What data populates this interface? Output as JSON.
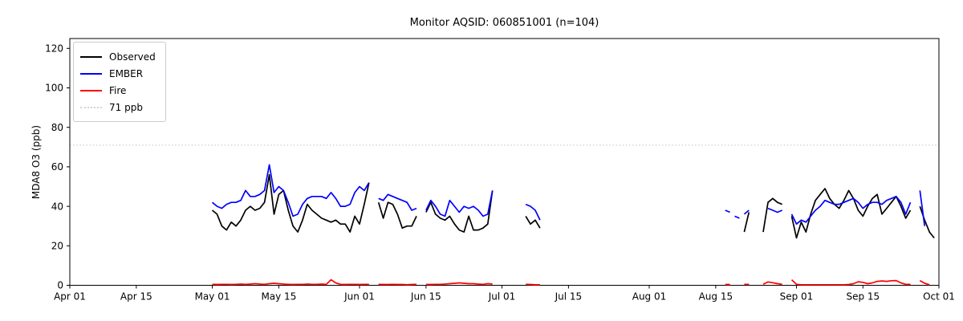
{
  "chart_data": {
    "type": "line",
    "title": "Monitor AQSID: 060851001 (n=104)",
    "xlabel": "",
    "ylabel": "MDA8 O3 (ppb)",
    "ylim": [
      0,
      125
    ],
    "y_ticks": [
      0,
      20,
      40,
      60,
      80,
      100,
      120
    ],
    "x_ticks": [
      "Apr 01",
      "Apr 15",
      "May 01",
      "May 15",
      "Jun 01",
      "Jun 15",
      "Jul 01",
      "Jul 15",
      "Aug 01",
      "Aug 15",
      "Sep 01",
      "Sep 15",
      "Oct 01"
    ],
    "x_range_days": 183,
    "grid": false,
    "legend_position": "upper left",
    "background": "#ffffff",
    "threshold_line": {
      "label": "71 ppb",
      "value": 71,
      "color": "#d3d3d3",
      "style": "dotted"
    },
    "legend": [
      {
        "label": "Observed",
        "color": "#000000",
        "style": "solid"
      },
      {
        "label": "EMBER",
        "color": "#0000ff",
        "style": "solid"
      },
      {
        "label": "Fire",
        "color": "#ff0000",
        "style": "solid"
      },
      {
        "label": "71 ppb",
        "color": "#d3d3d3",
        "style": "dotted"
      }
    ],
    "series": [
      {
        "name": "Observed",
        "color": "#000000",
        "segments": [
          {
            "start": "05-01",
            "values": [
              38,
              36,
              30,
              28,
              32,
              30,
              33,
              38,
              40,
              38,
              39,
              42,
              56,
              36,
              46,
              48,
              38,
              30,
              27,
              33,
              41,
              38,
              36,
              34,
              33,
              32,
              33,
              31,
              31,
              27,
              35,
              31,
              41,
              52
            ]
          },
          {
            "start": "06-05",
            "values": [
              42,
              34,
              42,
              41,
              36,
              29,
              30,
              30,
              35
            ]
          },
          {
            "start": "06-15",
            "values": [
              37,
              42,
              36,
              34,
              33,
              35,
              31,
              28,
              27,
              35,
              28,
              28,
              29,
              31,
              48
            ]
          },
          {
            "start": "07-06",
            "values": [
              35,
              31,
              33,
              29
            ]
          },
          {
            "start": "08-21",
            "values": [
              27,
              37
            ]
          },
          {
            "start": "08-25",
            "values": [
              27,
              42,
              44,
              42,
              41
            ]
          },
          {
            "start": "08-31",
            "values": [
              35,
              24,
              32,
              27,
              36,
              43,
              46,
              49,
              44,
              41,
              39,
              43,
              48,
              44,
              38,
              35,
              40,
              44,
              46,
              36,
              39,
              42,
              45,
              40,
              34,
              38
            ]
          },
          {
            "start": "09-27",
            "values": [
              40,
              33,
              27,
              24
            ]
          }
        ]
      },
      {
        "name": "EMBER",
        "color": "#0000ff",
        "segments": [
          {
            "start": "05-01",
            "values": [
              42,
              40,
              39,
              41,
              42,
              42,
              43,
              48,
              45,
              45,
              46,
              48,
              61,
              47,
              50,
              48,
              42,
              35,
              36,
              41,
              44,
              45,
              45,
              45,
              44,
              47,
              44,
              40,
              40,
              41,
              47,
              50,
              48,
              52
            ]
          },
          {
            "start": "06-05",
            "values": [
              44,
              43,
              46,
              45,
              44,
              43,
              42,
              38,
              39
            ]
          },
          {
            "start": "06-15",
            "values": [
              38,
              43,
              40,
              36,
              35,
              43,
              40,
              37,
              40,
              39,
              40,
              38,
              35,
              36,
              48
            ]
          },
          {
            "start": "07-06",
            "values": [
              41,
              40,
              38,
              33
            ]
          },
          {
            "start": "08-17",
            "values": [
              38,
              37
            ]
          },
          {
            "start": "08-19",
            "values": [
              35,
              34
            ]
          },
          {
            "start": "08-21",
            "values": [
              36,
              38
            ]
          },
          {
            "start": "08-26",
            "values": [
              39,
              38,
              37,
              38
            ]
          },
          {
            "start": "08-31",
            "values": [
              36,
              31,
              33,
              32,
              35,
              38,
              40,
              43,
              42,
              41,
              41,
              42,
              43,
              44,
              42,
              39,
              41,
              42,
              42,
              41,
              43,
              44,
              45,
              42,
              36,
              42
            ]
          },
          {
            "start": "09-27",
            "values": [
              48,
              30
            ]
          }
        ]
      },
      {
        "name": "Fire",
        "color": "#ff0000",
        "segments": [
          {
            "start": "05-01",
            "values": [
              0.5,
              0.4,
              0.5,
              0.5,
              0.4,
              0.5,
              0.6,
              0.5,
              0.6,
              0.8,
              0.6,
              0.5,
              0.8,
              1,
              0.8,
              0.6,
              0.5,
              0.4,
              0.5,
              0.5,
              0.6,
              0.5,
              0.5,
              0.6,
              0.5,
              2.8,
              1.2,
              0.5,
              0.4,
              0.5,
              0.5,
              0.4,
              0.5,
              0.5
            ]
          },
          {
            "start": "06-05",
            "values": [
              0.5,
              0.4,
              0.4,
              0.5,
              0.4,
              0.4,
              0.3,
              0.4,
              0.5
            ]
          },
          {
            "start": "06-15",
            "values": [
              0.4,
              0.4,
              0.5,
              0.5,
              0.6,
              0.8,
              1,
              1.2,
              1,
              0.8,
              0.8,
              0.6,
              0.5,
              0.8,
              0.6
            ]
          },
          {
            "start": "07-06",
            "values": [
              0.5,
              0.4,
              0.3,
              0.3
            ]
          },
          {
            "start": "08-17",
            "values": [
              0.4,
              0.4
            ]
          },
          {
            "start": "08-21",
            "values": [
              0.5,
              0.5
            ]
          },
          {
            "start": "08-25",
            "values": [
              0.5,
              1.7,
              1.3,
              0.8,
              0.5
            ]
          },
          {
            "start": "08-31",
            "values": [
              2.8,
              0.5,
              0.3,
              0.3,
              0.3,
              0.3,
              0.3,
              0.3,
              0.3,
              0.3,
              0.3,
              0.3,
              0.4,
              0.8,
              1.8,
              1.5,
              0.8,
              1.2,
              2,
              2.2,
              2,
              2.3,
              2.4,
              1.2,
              0.5,
              0.5
            ]
          },
          {
            "start": "09-27",
            "values": [
              2.4,
              1,
              0.3
            ]
          }
        ]
      }
    ]
  }
}
